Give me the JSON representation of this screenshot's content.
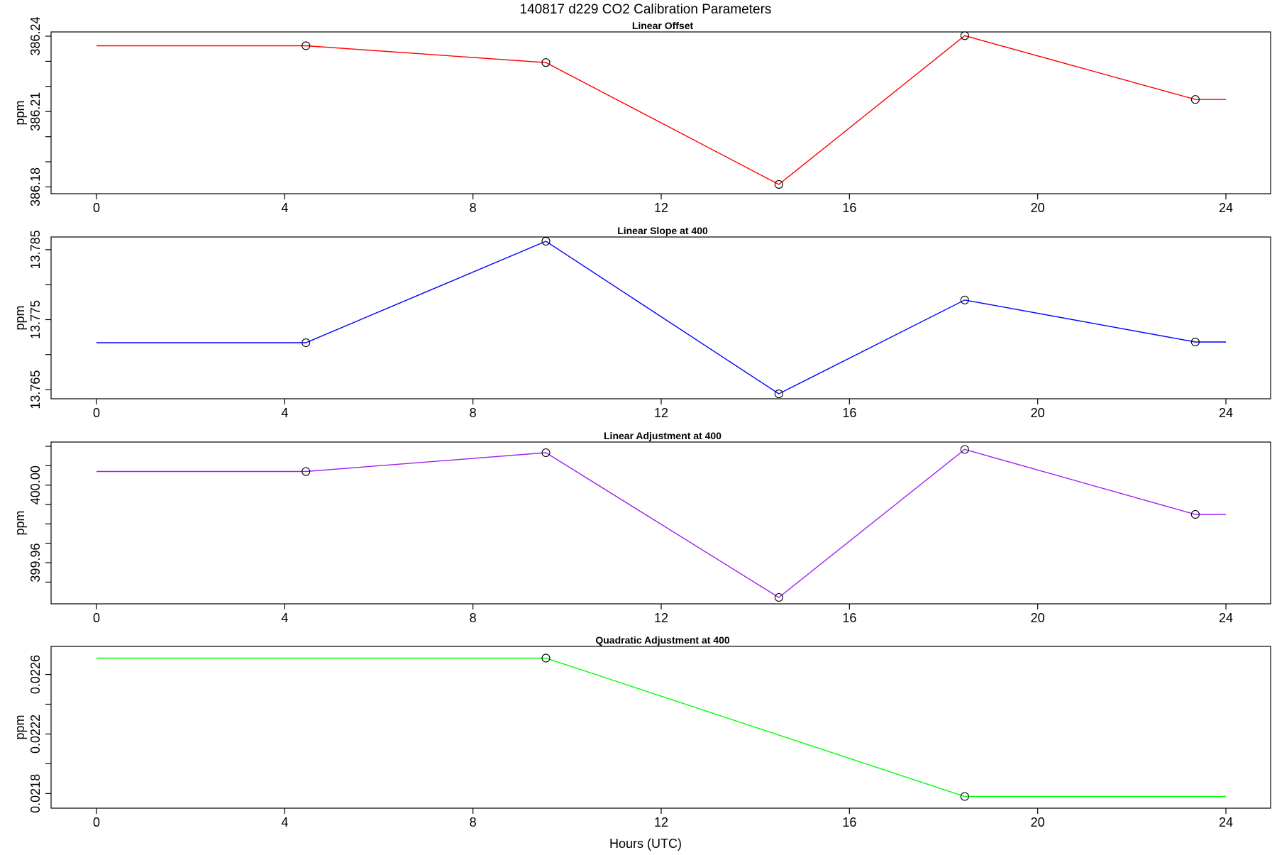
{
  "figure": {
    "title": "140817   d229   CO2 Calibration Parameters",
    "xlabel": "Hours (UTC)"
  },
  "chart_data": [
    {
      "type": "line",
      "title": "Linear Offset",
      "ylabel": "ppm",
      "xlim": [
        0,
        24
      ],
      "ylim": [
        386.179,
        386.24
      ],
      "x_ticks": [
        0,
        4,
        8,
        12,
        16,
        20,
        24
      ],
      "y_ticks": [
        386.18,
        386.21,
        386.24
      ],
      "y_tick_labels": [
        "386.18",
        "386.21",
        "386.24"
      ],
      "y_minor_ticks": [
        386.19,
        386.2,
        386.22,
        386.23
      ],
      "color": "#ff0000",
      "points": [
        {
          "x": 4.45,
          "y": 386.2362
        },
        {
          "x": 9.55,
          "y": 386.2295
        },
        {
          "x": 14.5,
          "y": 386.181
        },
        {
          "x": 18.45,
          "y": 386.2402
        },
        {
          "x": 23.35,
          "y": 386.2148
        }
      ],
      "line_extent": [
        0,
        24
      ]
    },
    {
      "type": "line",
      "title": "Linear Slope at 400",
      "ylabel": "ppm",
      "xlim": [
        0,
        24
      ],
      "ylim": [
        13.7643,
        13.7862
      ],
      "x_ticks": [
        0,
        4,
        8,
        12,
        16,
        20,
        24
      ],
      "y_ticks": [
        13.765,
        13.775,
        13.785
      ],
      "y_tick_labels": [
        "13.765",
        "13.775",
        "13.785"
      ],
      "y_minor_ticks": [
        13.77,
        13.78
      ],
      "color": "#0000ff",
      "points": [
        {
          "x": 4.45,
          "y": 13.7717
        },
        {
          "x": 9.55,
          "y": 13.7862
        },
        {
          "x": 14.5,
          "y": 13.7644
        },
        {
          "x": 18.45,
          "y": 13.7778
        },
        {
          "x": 23.35,
          "y": 13.7718
        }
      ],
      "line_extent": [
        0,
        24
      ]
    },
    {
      "type": "line",
      "title": "Linear Adjustment at 400",
      "ylabel": "ppm",
      "xlim": [
        0,
        24
      ],
      "ylim": [
        399.941,
        400.02
      ],
      "x_ticks": [
        0,
        4,
        8,
        12,
        16,
        20,
        24
      ],
      "y_ticks": [
        399.96,
        400.0
      ],
      "y_tick_labels": [
        "399.96",
        "400.00"
      ],
      "y_minor_ticks": [
        399.95,
        399.97,
        399.98,
        399.99,
        400.01,
        400.02
      ],
      "color": "#a020f0",
      "points": [
        {
          "x": 4.45,
          "y": 400.007
        },
        {
          "x": 9.55,
          "y": 400.0167
        },
        {
          "x": 14.5,
          "y": 399.9421
        },
        {
          "x": 18.45,
          "y": 400.0184
        },
        {
          "x": 23.35,
          "y": 399.9849
        }
      ],
      "line_extent": [
        0,
        24
      ]
    },
    {
      "type": "line",
      "title": "Quadratic Adjustment at 400",
      "ylabel": "ppm",
      "xlim": [
        0,
        24
      ],
      "ylim": [
        0.02173,
        0.02276
      ],
      "x_ticks": [
        0,
        4,
        8,
        12,
        16,
        20,
        24
      ],
      "y_ticks": [
        0.0218,
        0.0222,
        0.0226
      ],
      "y_tick_labels": [
        "0.0218",
        "0.0222",
        "0.0226"
      ],
      "y_minor_ticks": [
        0.022,
        0.0224
      ],
      "color": "#00ff00",
      "points": [
        {
          "x": 9.55,
          "y": 0.02271
        },
        {
          "x": 18.45,
          "y": 0.02178
        }
      ],
      "line_extent": [
        0,
        24
      ]
    }
  ]
}
